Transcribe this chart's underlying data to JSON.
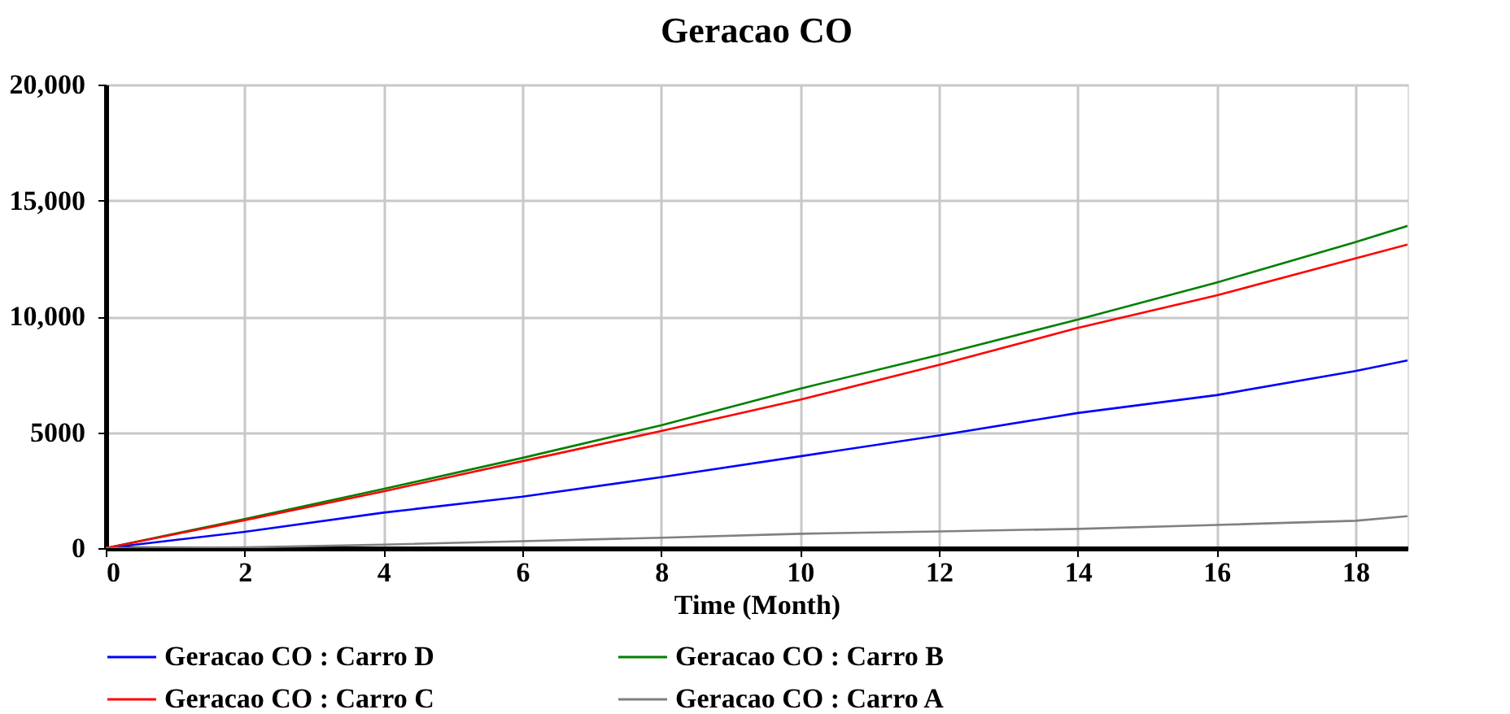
{
  "chart_data": {
    "type": "line",
    "title": "Geracao CO",
    "xlabel": "Time (Month)",
    "x": [
      0,
      2,
      4,
      6,
      8,
      10,
      12,
      14,
      16,
      18,
      18.75
    ],
    "series": [
      {
        "name": "Geracao CO : Carro D",
        "color": "#0000ff",
        "values": [
          0,
          700,
          1530,
          2220,
          3060,
          3960,
          4860,
          5830,
          6600,
          7640,
          8100
        ]
      },
      {
        "name": "Geracao CO : Carro B",
        "color": "#008000",
        "values": [
          0,
          1250,
          2550,
          3890,
          5300,
          6880,
          8330,
          9860,
          11460,
          13200,
          13900
        ]
      },
      {
        "name": "Geracao CO : Carro C",
        "color": "#ff0000",
        "values": [
          0,
          1200,
          2450,
          3750,
          5050,
          6400,
          7900,
          9500,
          10900,
          12500,
          13100
        ]
      },
      {
        "name": "Geracao CO : Carro A",
        "color": "#808080",
        "values": [
          0,
          30,
          150,
          300,
          450,
          620,
          720,
          830,
          1000,
          1180,
          1380
        ]
      }
    ],
    "xlim": [
      0,
      18.75
    ],
    "xticks": [
      0,
      2,
      4,
      6,
      8,
      10,
      12,
      14,
      16,
      18
    ],
    "ylim": [
      0,
      20000
    ],
    "yticks": [
      {
        "value": 0,
        "label": "0"
      },
      {
        "value": 5000,
        "label": "5000"
      },
      {
        "value": 10000,
        "label": "10,000"
      },
      {
        "value": 15000,
        "label": "15,000"
      },
      {
        "value": 20000,
        "label": "20,000"
      }
    ],
    "grid": true,
    "legend": "bottom",
    "marker": "none",
    "line_style": "solid"
  }
}
